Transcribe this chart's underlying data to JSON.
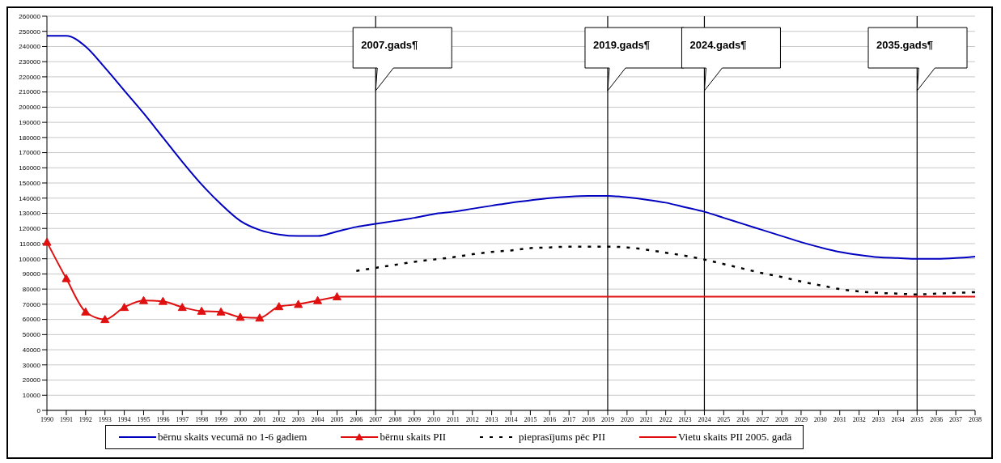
{
  "chart_data": {
    "type": "line",
    "categories": [
      "1990",
      "1991",
      "1992",
      "1993",
      "1994",
      "1995",
      "1996",
      "1997",
      "1998",
      "1999",
      "2000",
      "2001",
      "2002",
      "2003",
      "2004",
      "2005",
      "2006",
      "2007",
      "2008",
      "2009",
      "2010",
      "2011",
      "2012",
      "2013",
      "2014",
      "2015",
      "2016",
      "2017",
      "2018",
      "2019",
      "2020",
      "2021",
      "2022",
      "2023",
      "2024",
      "2025",
      "2026",
      "2027",
      "2028",
      "2029",
      "2030",
      "2031",
      "2032",
      "2033",
      "2034",
      "2035",
      "2036",
      "2037",
      "2038"
    ],
    "series": [
      {
        "name": "bērnu skaits vecumā no 1-6 gadiem",
        "color": "#0000c0",
        "marker": "none",
        "line_style": "solid",
        "values": [
          247000,
          247000,
          240000,
          226000,
          211000,
          196000,
          180000,
          164000,
          149000,
          136000,
          125000,
          119000,
          116000,
          115000,
          115000,
          118000,
          121000,
          123000,
          125000,
          127000,
          129500,
          131000,
          133000,
          135000,
          137000,
          138500,
          140000,
          141000,
          141500,
          141500,
          140500,
          139000,
          137000,
          134000,
          131000,
          127000,
          123000,
          119000,
          115000,
          111000,
          107500,
          104500,
          102500,
          101000,
          100500,
          100000,
          100000,
          100500,
          101500
        ]
      },
      {
        "name": "bērnu skaits PII",
        "color": "#e01010",
        "marker": "triangle",
        "line_style": "solid",
        "values": [
          111000,
          87000,
          65000,
          60000,
          68000,
          72500,
          72000,
          68000,
          65500,
          65000,
          61500,
          61000,
          68500,
          70000,
          72500,
          75000,
          null,
          null,
          null,
          null,
          null,
          null,
          null,
          null,
          null,
          null,
          null,
          null,
          null,
          null,
          null,
          null,
          null,
          null,
          null,
          null,
          null,
          null,
          null,
          null,
          null,
          null,
          null,
          null,
          null,
          null,
          null,
          null,
          null
        ]
      },
      {
        "name": "pieprasījums pēc PII",
        "color": "#000000",
        "marker": "none",
        "line_style": "dashed",
        "values": [
          null,
          null,
          null,
          null,
          null,
          null,
          null,
          null,
          null,
          null,
          null,
          null,
          null,
          null,
          null,
          null,
          92000,
          94000,
          96000,
          98000,
          99500,
          101000,
          103000,
          104500,
          105500,
          107000,
          107500,
          108000,
          108000,
          108000,
          107500,
          106000,
          104000,
          102000,
          99500,
          96500,
          93500,
          90500,
          88000,
          85000,
          82500,
          80000,
          78500,
          77500,
          77000,
          76500,
          77000,
          77500,
          78000
        ]
      },
      {
        "name": "Vietu skaits PII 2005. gadā",
        "color": "#e01010",
        "marker": "none",
        "line_style": "solid",
        "values": [
          null,
          null,
          null,
          null,
          null,
          null,
          null,
          null,
          null,
          null,
          null,
          null,
          null,
          null,
          null,
          75000,
          75000,
          75000,
          75000,
          75000,
          75000,
          75000,
          75000,
          75000,
          75000,
          75000,
          75000,
          75000,
          75000,
          75000,
          75000,
          75000,
          75000,
          75000,
          75000,
          75000,
          75000,
          75000,
          75000,
          75000,
          75000,
          75000,
          75000,
          75000,
          75000,
          75000,
          75000,
          75000,
          75000
        ]
      }
    ],
    "ylim": [
      0,
      260000
    ],
    "yticks": [
      0,
      10000,
      20000,
      30000,
      40000,
      50000,
      60000,
      70000,
      80000,
      90000,
      100000,
      110000,
      120000,
      130000,
      140000,
      150000,
      160000,
      170000,
      180000,
      190000,
      200000,
      210000,
      220000,
      230000,
      240000,
      250000,
      260000
    ],
    "ref_lines": [
      {
        "axis": "x",
        "value": "2007",
        "label": "2007.gads¶",
        "color": "#000000"
      },
      {
        "axis": "x",
        "value": "2019",
        "label": "2019.gads¶",
        "color": "#000000"
      },
      {
        "axis": "x",
        "value": "2024",
        "label": "2024.gads¶",
        "color": "#000000"
      },
      {
        "axis": "x",
        "value": "2035",
        "label": "2035.gads¶",
        "color": "#000000"
      }
    ],
    "grid": "y",
    "legend": "bottom"
  }
}
